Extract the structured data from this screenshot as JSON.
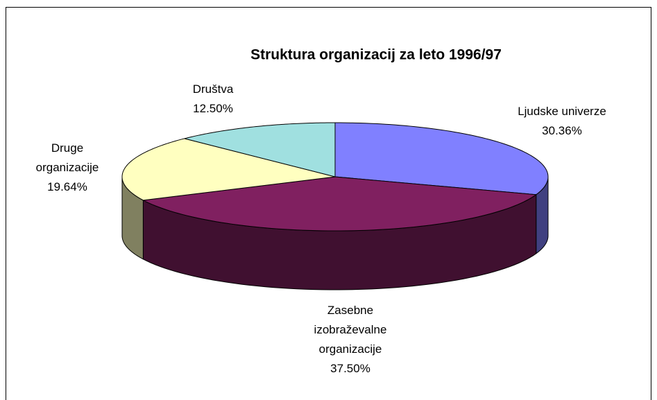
{
  "chart_data": {
    "type": "pie",
    "title": "Struktura organizacij za leto 1996/97",
    "categories": [
      "Ljudske univerze",
      "Zasebne izobraževalne organizacije",
      "Druge organizacije",
      "Društva"
    ],
    "values": [
      30.36,
      37.5,
      19.64,
      12.5
    ],
    "value_labels": [
      "30.36%",
      "37.50%",
      "19.64%",
      "12.50%"
    ],
    "colors": [
      "#8080ff",
      "#802060",
      "#ffffc0",
      "#a0e0e0"
    ]
  }
}
